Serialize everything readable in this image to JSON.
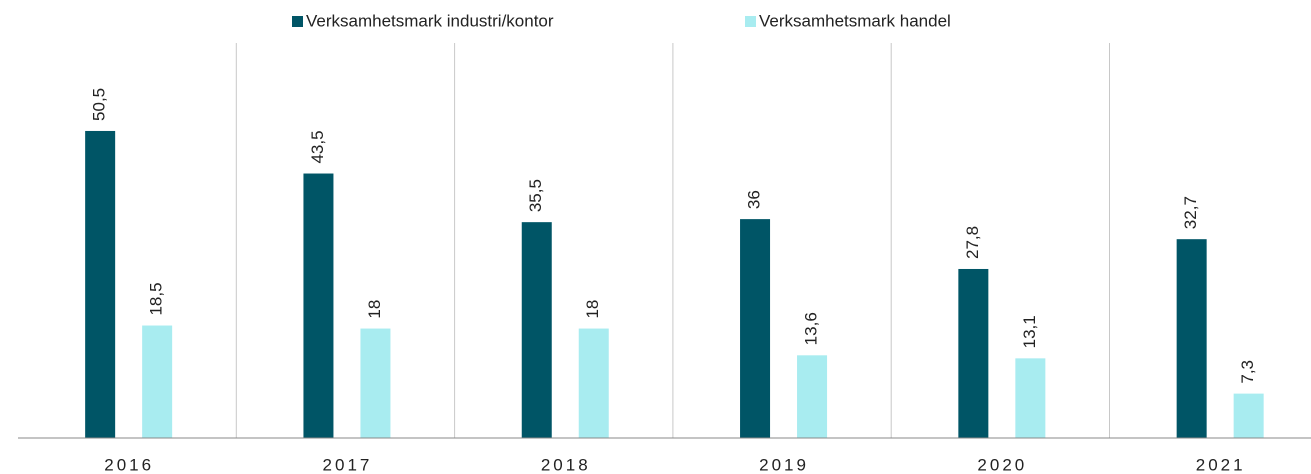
{
  "chart_data": {
    "type": "bar",
    "categories": [
      "2016",
      "2017",
      "2018",
      "2019",
      "2020",
      "2021"
    ],
    "series": [
      {
        "name": "Verksamhetsmark industri/kontor",
        "color": "#005566",
        "values": [
          50.5,
          43.5,
          35.5,
          36,
          27.8,
          32.7
        ],
        "value_labels": [
          "50,5",
          "43,5",
          "35,5",
          "36",
          "27,8",
          "32,7"
        ]
      },
      {
        "name": "Verksamhetsmark handel",
        "color": "#a8ecf0",
        "values": [
          18.5,
          18,
          18,
          13.6,
          13.1,
          7.3
        ],
        "value_labels": [
          "18,5",
          "18",
          "18",
          "13,6",
          "13,1",
          "7,3"
        ]
      }
    ],
    "legend": "top"
  }
}
